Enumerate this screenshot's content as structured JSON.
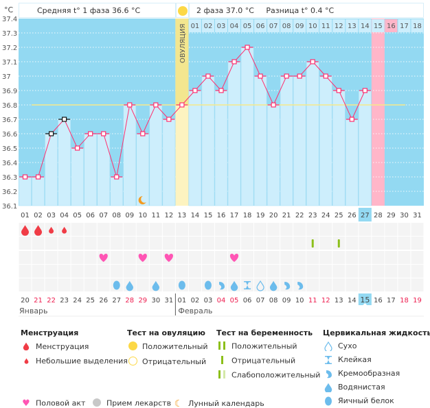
{
  "unit_label": "°C",
  "header": {
    "phase1_label": "Средняя t° 1 фаза 36.6 °C",
    "phase2_label": "2 фаза 37.0 °C",
    "diff_label": "Разница t° 0.4 °C"
  },
  "ovulation_label": "ОВУЛЯЦИЯ",
  "colors": {
    "background": "#93d9f2",
    "bar": "#cdeefc",
    "line": "#ff2e6e",
    "coverline": "#f7e98a",
    "ovulation": "#fdf3c0",
    "period_start": "#ffb6c9",
    "weekend": "#ee1c4e"
  },
  "chart_data": {
    "type": "line",
    "ylim": [
      36.1,
      37.4
    ],
    "yticks": [
      "37.4",
      "37.3",
      "37.2",
      "37.1",
      "37",
      "36.9",
      "36.8",
      "36.7",
      "36.6",
      "36.5",
      "36.4",
      "36.3",
      "36.2",
      "36.1"
    ],
    "cycle_days": [
      "01",
      "02",
      "03",
      "04",
      "05",
      "06",
      "07",
      "08",
      "09",
      "10",
      "11",
      "12",
      "13",
      "14",
      "15",
      "16",
      "17",
      "18",
      "19",
      "20",
      "21",
      "22",
      "23",
      "24",
      "25",
      "26",
      "27",
      "28",
      "29",
      "30",
      "31"
    ],
    "temperatures": [
      36.3,
      36.3,
      36.6,
      36.7,
      36.5,
      36.6,
      36.6,
      36.3,
      36.8,
      36.6,
      36.8,
      36.7,
      36.8,
      36.9,
      37.0,
      36.9,
      37.1,
      37.2,
      37.0,
      36.8,
      37.0,
      37.0,
      37.1,
      37.0,
      36.9,
      36.7,
      36.9
    ],
    "excluded_days": [
      3,
      4
    ],
    "coverline": 36.8,
    "ovulation_day": 13,
    "today_cycle_day": 27,
    "next_cycle_day": 28,
    "moon_day": 10,
    "phase2_days": [
      "01",
      "02",
      "03",
      "04",
      "05",
      "06",
      "07",
      "08",
      "09",
      "10",
      "11",
      "12",
      "13",
      "14",
      "15",
      "16",
      "17",
      "18"
    ],
    "grid": true
  },
  "markers": {
    "menstruation": {
      "1": "heavy",
      "2": "heavy",
      "3": "light",
      "4": "light"
    },
    "pregnancy_test": {
      "23": "positive-single",
      "25": "positive-single"
    },
    "intercourse": [
      7,
      10,
      12,
      17
    ],
    "cervical_fluid": {
      "8": "egg-white",
      "9": "watery",
      "11": "watery",
      "13": "egg-white",
      "15": "egg-white",
      "16": "creamy",
      "17": "watery",
      "18": "sticky",
      "19": "dry",
      "20": "watery",
      "21": "creamy",
      "22": "creamy"
    }
  },
  "dates": [
    {
      "d": "20"
    },
    {
      "d": "21",
      "w": true
    },
    {
      "d": "22",
      "w": true
    },
    {
      "d": "23"
    },
    {
      "d": "24"
    },
    {
      "d": "25"
    },
    {
      "d": "26"
    },
    {
      "d": "27"
    },
    {
      "d": "28",
      "w": true
    },
    {
      "d": "29",
      "w": true
    },
    {
      "d": "30"
    },
    {
      "d": "31"
    },
    {
      "d": "01"
    },
    {
      "d": "02"
    },
    {
      "d": "03"
    },
    {
      "d": "04",
      "w": true
    },
    {
      "d": "05",
      "w": true
    },
    {
      "d": "06"
    },
    {
      "d": "07"
    },
    {
      "d": "08"
    },
    {
      "d": "09"
    },
    {
      "d": "10"
    },
    {
      "d": "11",
      "w": true
    },
    {
      "d": "12",
      "w": true
    },
    {
      "d": "13"
    },
    {
      "d": "14"
    },
    {
      "d": "15"
    },
    {
      "d": "16"
    },
    {
      "d": "17"
    },
    {
      "d": "18",
      "w": true
    },
    {
      "d": "19",
      "w": true
    }
  ],
  "months": {
    "first": "Январь",
    "second": "Февраль"
  },
  "legend": {
    "menstruation": {
      "title": "Менструация",
      "items": [
        "Менструация",
        "Небольшие выделения"
      ]
    },
    "ovulation_test": {
      "title": "Тест на овуляцию",
      "items": [
        "Положительный",
        "Отрицательный"
      ]
    },
    "pregnancy_test": {
      "title": "Тест на беременность",
      "items": [
        "Положительный",
        "Отрицательный",
        "Слабоположительный"
      ]
    },
    "cervical": {
      "title": "Цервикальная жидкость",
      "items": [
        "Сухо",
        "Клейкая",
        "Кремообразная",
        "Водянистая",
        "Яичный белок"
      ]
    },
    "bottom": [
      "Половой акт",
      "Прием лекарств",
      "Лунный календарь"
    ]
  }
}
